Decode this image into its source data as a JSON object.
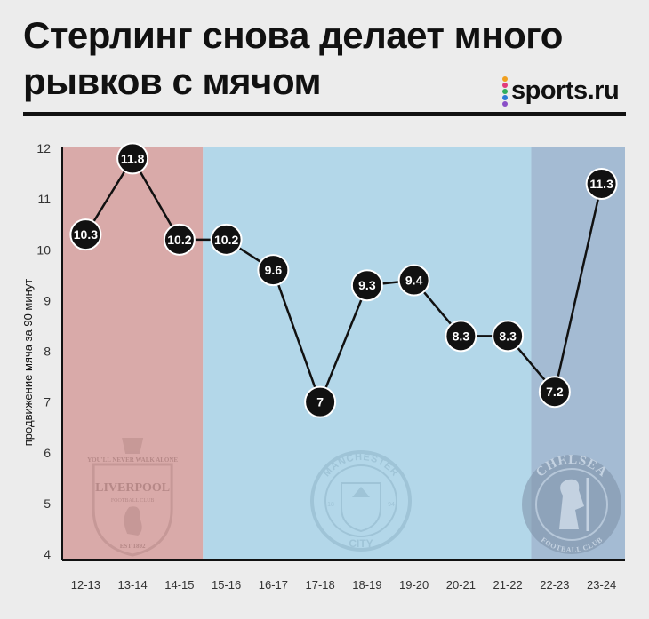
{
  "header": {
    "title_line1": "Стерлинг снова делает много",
    "title_line2": "рывков с мячом",
    "brand": "sports.ru",
    "brand_dot_colors": [
      "#f0a020",
      "#e23b7a",
      "#2fae5e",
      "#2b7bd6",
      "#8a4fc8"
    ]
  },
  "chart_data": {
    "type": "line",
    "ylabel": "продвижение мяча за 90 минут",
    "xlabel": "",
    "ylim": [
      4,
      12
    ],
    "yticks": [
      4,
      5,
      6,
      7,
      8,
      9,
      10,
      11,
      12
    ],
    "categories": [
      "12-13",
      "13-14",
      "14-15",
      "15-16",
      "16-17",
      "17-18",
      "18-19",
      "19-20",
      "20-21",
      "21-22",
      "22-23",
      "23-24"
    ],
    "values": [
      10.3,
      11.8,
      10.2,
      10.2,
      9.6,
      7,
      9.3,
      9.4,
      8.3,
      8.3,
      7.2,
      11.3
    ],
    "value_labels": [
      "10.3",
      "11.8",
      "10.2",
      "10.2",
      "9.6",
      "7",
      "9.3",
      "9.4",
      "8.3",
      "8.3",
      "7.2",
      "11.3"
    ],
    "grid": false,
    "club_periods": [
      {
        "club": "liverpool",
        "from": "12-13",
        "to": "14-15",
        "color": "#d9aaa9",
        "crest_text": [
          "YOU'LL NEVER WALK ALONE",
          "LIVERPOOL",
          "FOOTBALL CLUB",
          "EST 1892"
        ]
      },
      {
        "club": "manchester-city",
        "from": "15-16",
        "to": "21-22",
        "color": "#b3d7e9",
        "crest_text": [
          "MANCHESTER",
          "CITY",
          "18",
          "94"
        ]
      },
      {
        "club": "chelsea",
        "from": "22-23",
        "to": "23-24",
        "color": "#a4bbd3",
        "crest_text": [
          "CHELSEA",
          "FOOTBALL CLUB"
        ]
      }
    ]
  }
}
